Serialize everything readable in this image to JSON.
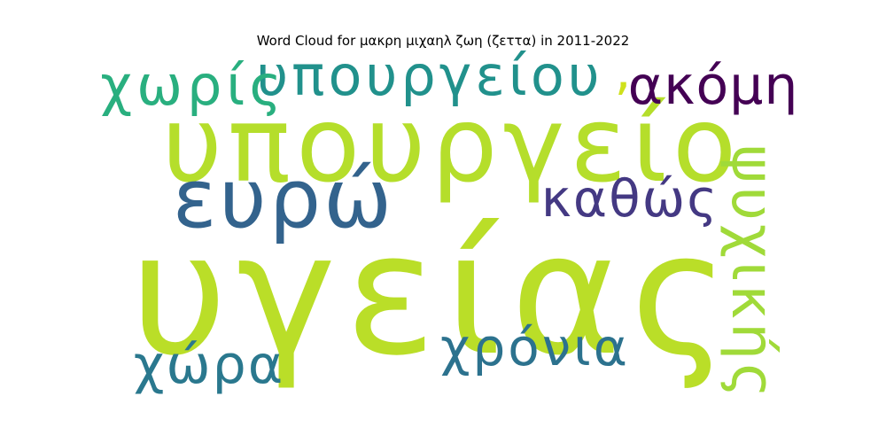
{
  "chart_data": {
    "type": "wordcloud",
    "title": "Word Cloud for μακρη μιχαηλ ζωη (ζεττα) in 2011-2022",
    "words": [
      {
        "text": "υγείας",
        "rank": 1,
        "color": "#bade28"
      },
      {
        "text": "υπουργείο",
        "rank": 2,
        "color": "#b5de2b"
      },
      {
        "text": "ευρώ",
        "rank": 3,
        "color": "#33638d"
      },
      {
        "text": "υπουργείου",
        "rank": 4,
        "color": "#21918c"
      },
      {
        "text": "χωρίς",
        "rank": 5,
        "color": "#29af7f"
      },
      {
        "text": "ψυχικής",
        "rank": 6,
        "color": "#a0da39"
      },
      {
        "text": "καθώς",
        "rank": 7,
        "color": "#443983"
      },
      {
        "text": "ακόμη",
        "rank": 8,
        "color": "#440154"
      },
      {
        "text": "χρόνια",
        "rank": 9,
        "color": "#2c728e"
      },
      {
        "text": "χώρα",
        "rank": 10,
        "color": "#2a788e"
      },
      {
        "text": ",",
        "rank": 11,
        "color": "#cfe11c"
      }
    ]
  }
}
